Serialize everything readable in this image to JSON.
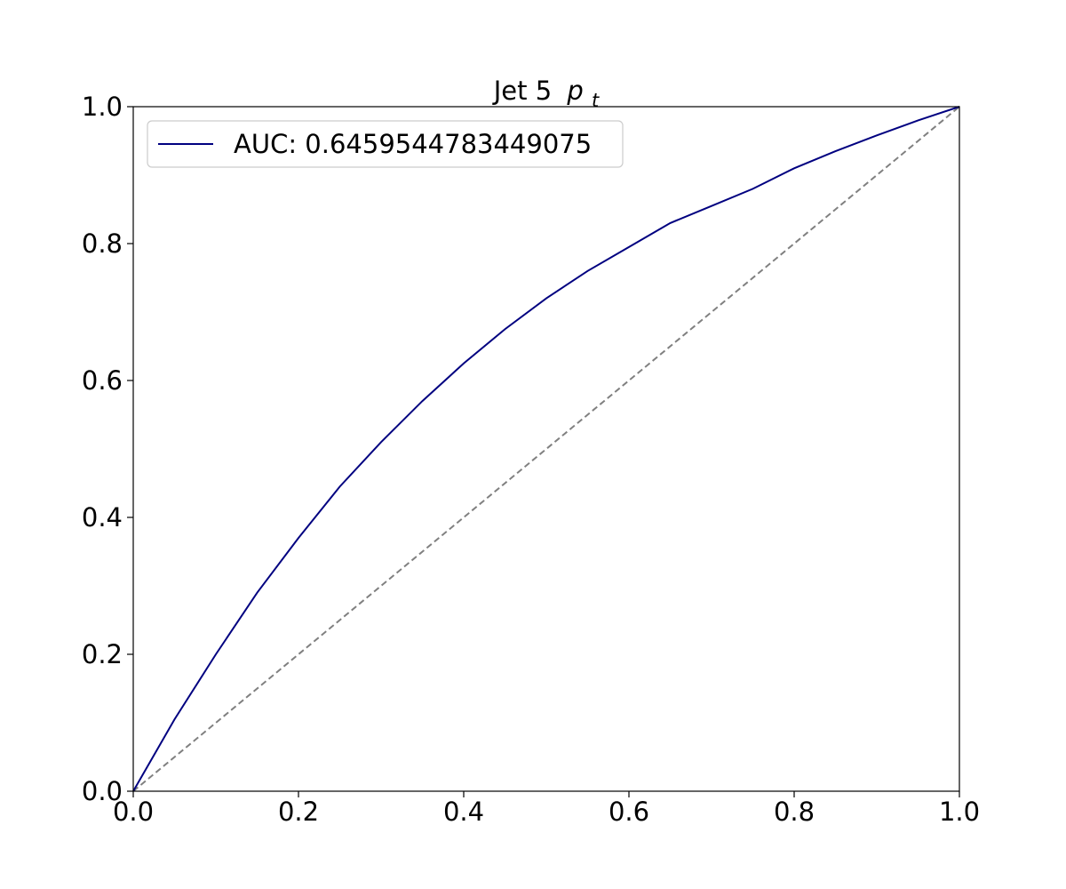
{
  "chart_data": {
    "type": "line",
    "title": {
      "text": "Jet 5",
      "symbol": "p",
      "subscript": "t"
    },
    "x": [
      0,
      0.05,
      0.1,
      0.15,
      0.2,
      0.25,
      0.3,
      0.35,
      0.4,
      0.45,
      0.5,
      0.55,
      0.6,
      0.65,
      0.7,
      0.75,
      0.8,
      0.85,
      0.9,
      0.95,
      1
    ],
    "series": [
      {
        "name": "AUC: 0.6459544783449075",
        "color": "#000080",
        "values": [
          0,
          0.105,
          0.2,
          0.29,
          0.37,
          0.445,
          0.51,
          0.57,
          0.625,
          0.675,
          0.72,
          0.76,
          0.795,
          0.83,
          0.855,
          0.88,
          0.91,
          0.935,
          0.958,
          0.98,
          1
        ]
      }
    ],
    "reference_line": {
      "x": [
        0,
        1
      ],
      "values": [
        0,
        1
      ],
      "color": "#808080",
      "dashed": true
    },
    "xlim": [
      0,
      1
    ],
    "ylim": [
      0,
      1
    ],
    "xticks": [
      {
        "value": 0,
        "label": "0.0"
      },
      {
        "value": 0.2,
        "label": "0.2"
      },
      {
        "value": 0.4,
        "label": "0.4"
      },
      {
        "value": 0.6,
        "label": "0.6"
      },
      {
        "value": 0.8,
        "label": "0.8"
      },
      {
        "value": 1,
        "label": "1.0"
      }
    ],
    "yticks": [
      {
        "value": 0,
        "label": "0.0"
      },
      {
        "value": 0.2,
        "label": "0.2"
      },
      {
        "value": 0.4,
        "label": "0.4"
      },
      {
        "value": 0.6,
        "label": "0.6"
      },
      {
        "value": 0.8,
        "label": "0.8"
      },
      {
        "value": 1,
        "label": "1.0"
      }
    ],
    "grid": false,
    "legend": "upper left"
  }
}
